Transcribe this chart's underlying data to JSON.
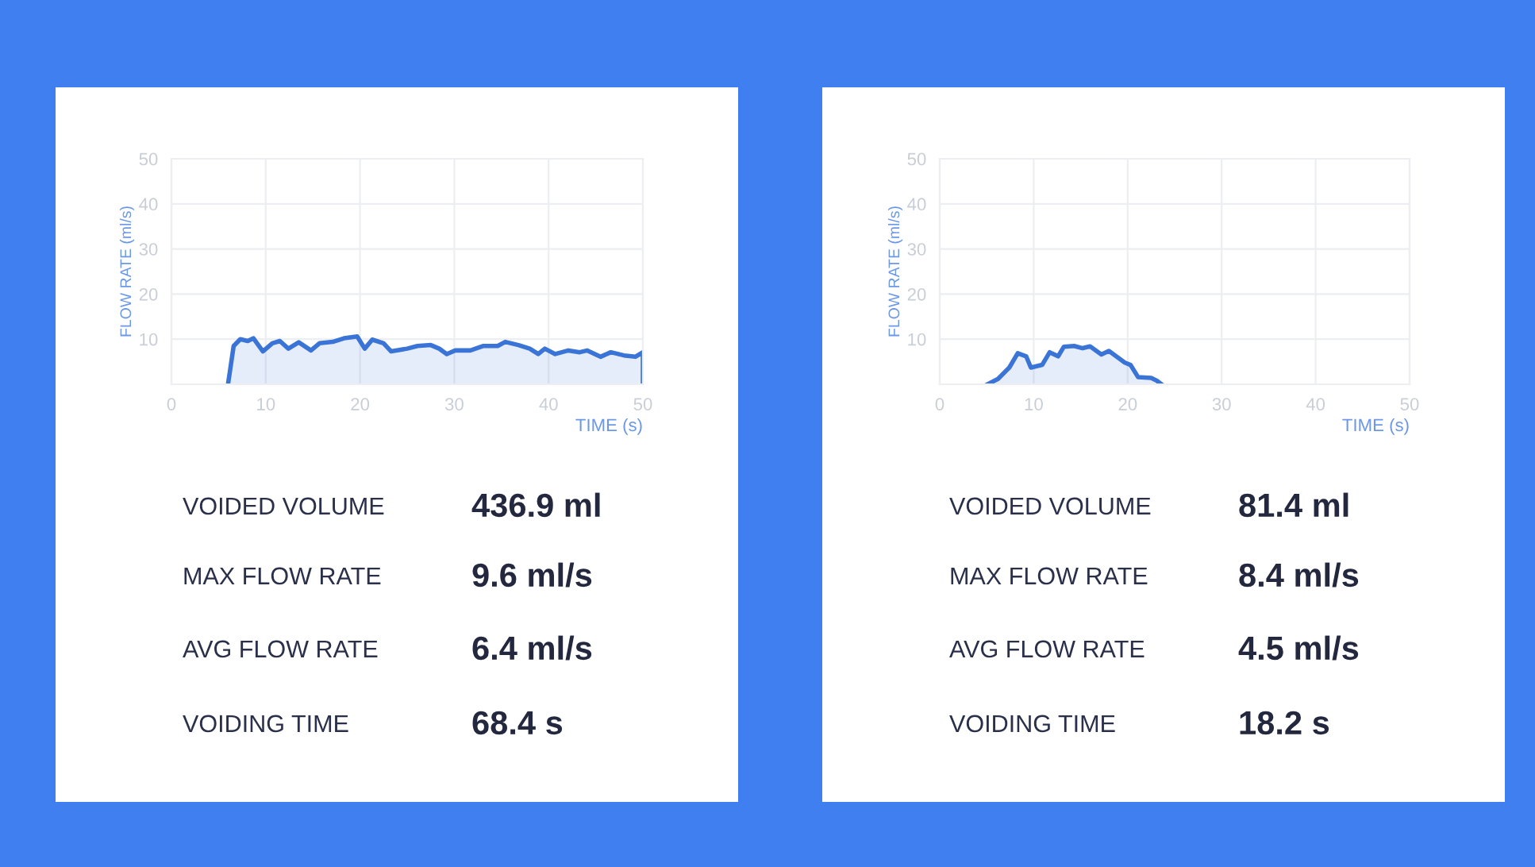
{
  "chart_data": [
    {
      "type": "area",
      "xlabel": "TIME (s)",
      "ylabel": "FLOW RATE (ml/s)",
      "xlim": [
        0,
        50
      ],
      "ylim": [
        0,
        50
      ],
      "xticks": [
        0,
        10,
        20,
        30,
        40,
        50
      ],
      "yticks": [
        {
          "value": 0,
          "label": null
        },
        10,
        20,
        30,
        40,
        50
      ],
      "grid": true,
      "series": [
        {
          "color": "#3a74d6",
          "x": [
            6.0,
            6.6,
            7.3,
            8.1,
            8.7,
            9.7,
            10.7,
            11.5,
            12.4,
            13.5,
            14.8,
            15.7,
            17.1,
            18.3,
            19.7,
            20.5,
            21.3,
            22.5,
            23.3,
            25.0,
            26.1,
            27.5,
            28.4,
            29.2,
            30.1,
            31.7,
            33.1,
            34.6,
            35.4,
            36.8,
            38.0,
            38.9,
            39.6,
            40.7,
            42.1,
            43.3,
            44.1,
            45.5,
            46.6,
            48.0,
            49.2,
            50.0,
            50.0
          ],
          "values": [
            0,
            8.5,
            10.0,
            9.6,
            10.2,
            7.3,
            9.1,
            9.6,
            7.9,
            9.3,
            7.5,
            9.1,
            9.4,
            10.2,
            10.6,
            7.9,
            9.9,
            9.1,
            7.3,
            7.9,
            8.5,
            8.7,
            7.9,
            6.7,
            7.5,
            7.5,
            8.5,
            8.5,
            9.4,
            8.7,
            7.9,
            6.7,
            7.9,
            6.7,
            7.5,
            7.1,
            7.5,
            6.1,
            7.1,
            6.4,
            6.1,
            7.1,
            0
          ]
        }
      ],
      "annotations": [
        "VOIDED VOLUME",
        "436.9 ml",
        "MAX FLOW RATE",
        "9.6 ml/s",
        "AVG FLOW RATE",
        "6.4 ml/s",
        "VOIDING TIME",
        "68.4 s"
      ]
    },
    {
      "type": "area",
      "xlabel": "TIME (s)",
      "ylabel": "FLOW RATE (ml/s)",
      "xlim": [
        0,
        50
      ],
      "ylim": [
        0,
        50
      ],
      "xticks": [
        0,
        10,
        20,
        30,
        40,
        50
      ],
      "yticks": [
        {
          "value": 0,
          "label": null
        },
        10,
        20,
        30,
        40,
        50
      ],
      "grid": true,
      "series": [
        {
          "color": "#3a74d6",
          "x": [
            5.1,
            6.2,
            7.4,
            8.3,
            9.2,
            9.7,
            10.9,
            11.7,
            12.6,
            13.2,
            14.3,
            15.2,
            16.0,
            17.2,
            18.0,
            19.7,
            20.3,
            21.1,
            22.5,
            23.1,
            23.6
          ],
          "values": [
            0,
            1.2,
            3.7,
            6.9,
            6.2,
            3.7,
            4.3,
            7.1,
            6.2,
            8.3,
            8.5,
            8.0,
            8.4,
            6.6,
            7.4,
            4.8,
            4.3,
            1.6,
            1.4,
            0.8,
            0
          ]
        }
      ],
      "annotations": [
        "VOIDED VOLUME",
        "81.4 ml",
        "MAX FLOW RATE",
        "8.4 ml/s",
        "AVG FLOW RATE",
        "4.5 ml/s",
        "VOIDING TIME",
        "18.2 s"
      ]
    }
  ]
}
